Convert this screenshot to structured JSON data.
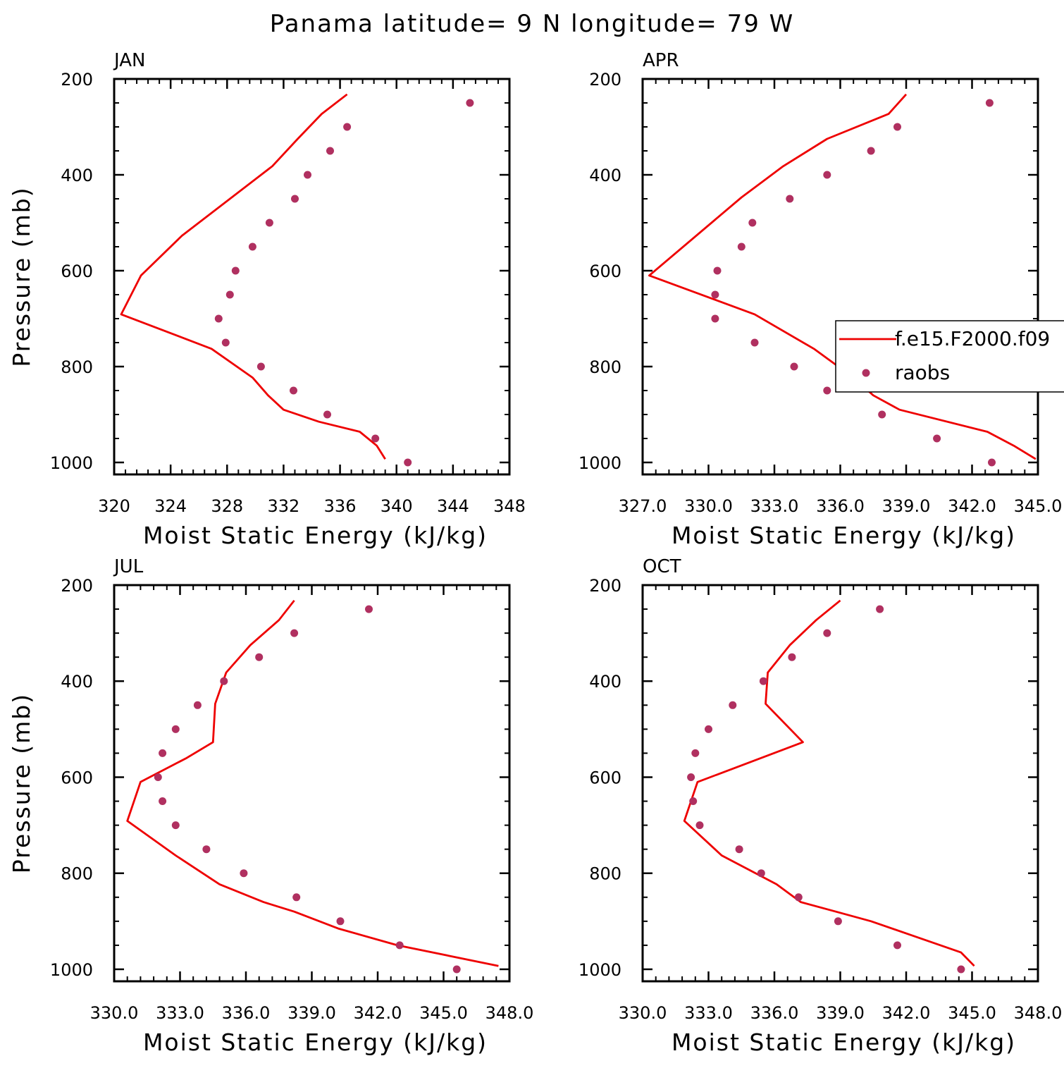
{
  "title": "Panama  latitude= 9 N longitude= 79 W",
  "colors": {
    "model_line": "#ee0000",
    "raobs_dot": "#b03060",
    "axis": "#000000"
  },
  "legend": {
    "entries": [
      {
        "label": "f.e15.F2000.f09",
        "style": "line"
      },
      {
        "label": "raobs",
        "style": "dot"
      }
    ],
    "placement": "right of APR panel, clipped at page edge"
  },
  "chart_data": [
    {
      "type": "line+scatter",
      "title": "JAN",
      "xlabel": "Moist Static Energy (kJ/kg)",
      "ylabel": "Pressure (mb)",
      "xlim": [
        320,
        348
      ],
      "ylim": [
        1025,
        200
      ],
      "xticks": [
        320,
        324,
        328,
        332,
        336,
        340,
        344,
        348
      ],
      "xtick_labels": [
        "320",
        "324",
        "328",
        "332",
        "336",
        "340",
        "344",
        "348"
      ],
      "yticks": [
        200,
        400,
        600,
        800,
        1000
      ],
      "ytick_labels": [
        "200",
        "400",
        "600",
        "800",
        "1000"
      ],
      "series": [
        {
          "name": "f.e15.F2000.f09",
          "kind": "line",
          "x": [
            336.5,
            334.7,
            333.0,
            331.2,
            324.8,
            321.9,
            320.5,
            326.9,
            329.8,
            330.9,
            332.0,
            334.5,
            337.4,
            338.6,
            339.2
          ],
          "y": [
            232,
            273,
            325,
            382,
            527,
            610,
            691,
            763,
            823,
            860,
            890,
            915,
            936,
            965,
            993
          ]
        },
        {
          "name": "raobs",
          "kind": "scatter",
          "x": [
            345.2,
            336.5,
            335.3,
            333.7,
            332.8,
            331.0,
            329.8,
            328.6,
            328.2,
            327.4,
            327.9,
            330.4,
            332.7,
            335.1,
            338.5,
            340.8
          ],
          "y": [
            250,
            300,
            350,
            400,
            450,
            500,
            550,
            600,
            650,
            700,
            750,
            800,
            850,
            900,
            950,
            1000
          ]
        }
      ]
    },
    {
      "type": "line+scatter",
      "title": "APR",
      "xlabel": "Moist Static Energy (kJ/kg)",
      "ylabel": "",
      "xlim": [
        327,
        345
      ],
      "ylim": [
        1025,
        200
      ],
      "xticks": [
        327,
        330,
        333,
        336,
        339,
        342,
        345
      ],
      "xtick_labels": [
        "327.0",
        "330.0",
        "333.0",
        "336.0",
        "339.0",
        "342.0",
        "345.0"
      ],
      "yticks": [
        200,
        400,
        600,
        800,
        1000
      ],
      "ytick_labels": [
        "200",
        "400",
        "600",
        "800",
        "1000"
      ],
      "series": [
        {
          "name": "f.e15.F2000.f09",
          "kind": "line",
          "x": [
            339.0,
            338.2,
            335.4,
            333.4,
            331.5,
            327.3,
            332.1,
            334.8,
            336.6,
            337.5,
            338.7,
            342.7,
            343.9,
            344.9
          ],
          "y": [
            232,
            273,
            325,
            382,
            447,
            610,
            691,
            763,
            823,
            860,
            890,
            936,
            965,
            993
          ]
        },
        {
          "name": "raobs",
          "kind": "scatter",
          "x": [
            342.8,
            338.6,
            337.4,
            335.4,
            333.7,
            332.0,
            331.5,
            330.4,
            330.3,
            330.3,
            332.1,
            333.9,
            335.4,
            337.9,
            340.4,
            342.9
          ],
          "y": [
            250,
            300,
            350,
            400,
            450,
            500,
            550,
            600,
            650,
            700,
            750,
            800,
            850,
            900,
            950,
            1000
          ]
        }
      ]
    },
    {
      "type": "line+scatter",
      "title": "JUL",
      "xlabel": "Moist Static Energy (kJ/kg)",
      "ylabel": "Pressure (mb)",
      "xlim": [
        330,
        348
      ],
      "ylim": [
        1025,
        200
      ],
      "xticks": [
        330,
        333,
        336,
        339,
        342,
        345,
        348
      ],
      "xtick_labels": [
        "330.0",
        "333.0",
        "336.0",
        "339.0",
        "342.0",
        "345.0",
        "348.0"
      ],
      "yticks": [
        200,
        400,
        600,
        800,
        1000
      ],
      "ytick_labels": [
        "200",
        "400",
        "600",
        "800",
        "1000"
      ],
      "series": [
        {
          "name": "f.e15.F2000.f09",
          "kind": "line",
          "x": [
            338.2,
            337.5,
            336.2,
            335.1,
            334.6,
            334.5,
            333.3,
            331.2,
            330.6,
            332.8,
            334.8,
            336.8,
            338.2,
            340.2,
            342.9,
            347.5
          ],
          "y": [
            232,
            273,
            325,
            382,
            447,
            527,
            560,
            610,
            691,
            763,
            823,
            860,
            880,
            915,
            950,
            993
          ]
        },
        {
          "name": "raobs",
          "kind": "scatter",
          "x": [
            341.6,
            338.2,
            336.6,
            335.0,
            333.8,
            332.8,
            332.2,
            332.0,
            332.2,
            332.8,
            334.2,
            335.9,
            338.3,
            340.3,
            343.0,
            345.6
          ],
          "y": [
            250,
            300,
            350,
            400,
            450,
            500,
            550,
            600,
            650,
            700,
            750,
            800,
            850,
            900,
            950,
            1000
          ]
        }
      ]
    },
    {
      "type": "line+scatter",
      "title": "OCT",
      "xlabel": "Moist Static Energy (kJ/kg)",
      "ylabel": "",
      "xlim": [
        330,
        348
      ],
      "ylim": [
        1025,
        200
      ],
      "xticks": [
        330,
        333,
        336,
        339,
        342,
        345,
        348
      ],
      "xtick_labels": [
        "330.0",
        "333.0",
        "336.0",
        "339.0",
        "342.0",
        "345.0",
        "348.0"
      ],
      "yticks": [
        200,
        400,
        600,
        800,
        1000
      ],
      "ytick_labels": [
        "200",
        "400",
        "600",
        "800",
        "1000"
      ],
      "series": [
        {
          "name": "f.e15.F2000.f09",
          "kind": "line",
          "x": [
            339.0,
            337.9,
            336.7,
            335.7,
            335.6,
            337.3,
            332.5,
            331.9,
            333.6,
            336.1,
            337.2,
            338.8,
            340.4,
            342.3,
            344.5,
            345.1
          ],
          "y": [
            232,
            273,
            325,
            382,
            447,
            527,
            610,
            691,
            763,
            823,
            860,
            880,
            900,
            930,
            965,
            993
          ]
        },
        {
          "name": "raobs",
          "kind": "scatter",
          "x": [
            340.8,
            338.4,
            336.8,
            335.5,
            334.1,
            333.0,
            332.4,
            332.2,
            332.3,
            332.6,
            334.4,
            335.4,
            337.1,
            338.9,
            341.6,
            344.5
          ],
          "y": [
            250,
            300,
            350,
            400,
            450,
            500,
            550,
            600,
            650,
            700,
            750,
            800,
            850,
            900,
            950,
            1000
          ]
        }
      ]
    }
  ]
}
